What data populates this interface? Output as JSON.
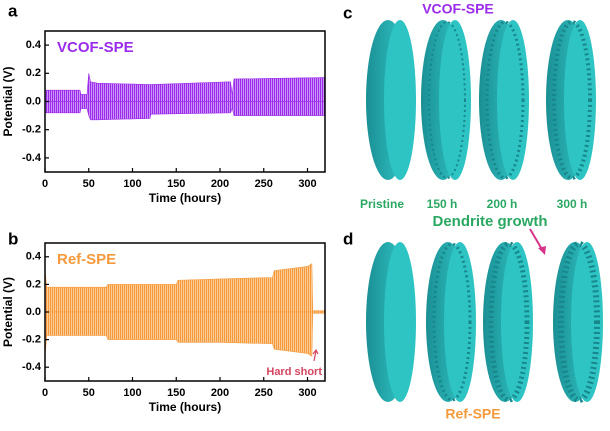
{
  "panels": [
    "a",
    "b",
    "c",
    "d"
  ],
  "chart_data": [
    {
      "type": "area",
      "title": "VCOF-SPE",
      "title_color": "#9a2bea",
      "xlabel": "Time (hours)",
      "ylabel": "Potential (V)",
      "x": [
        0,
        40,
        41,
        48,
        50,
        52,
        60,
        120,
        121,
        212,
        214,
        216,
        320
      ],
      "series": [
        {
          "color": "#9a2bea",
          "values": [
            0.08,
            0.08,
            0.05,
            0.05,
            0.2,
            0.14,
            0.13,
            0.12,
            0.12,
            0.14,
            0.05,
            0.16,
            0.17
          ]
        },
        {
          "color": "#9a2bea",
          "values": [
            -0.08,
            -0.08,
            -0.05,
            -0.05,
            -0.1,
            -0.13,
            -0.13,
            -0.12,
            -0.09,
            -0.08,
            -0.05,
            -0.1,
            -0.1
          ]
        }
      ],
      "xlim": [
        0,
        320
      ],
      "xticks": [
        0,
        50,
        100,
        150,
        200,
        250,
        300
      ],
      "ylim": [
        -0.5,
        0.5
      ],
      "yticks": [
        0.4,
        0.2,
        {
          "value": 0,
          "label": "0.0"
        },
        -0.2,
        -0.4
      ]
    },
    {
      "type": "area",
      "title": "Ref-SPE",
      "title_color": "#f59a3c",
      "xlabel": "Time (hours)",
      "ylabel": "Potential (V)",
      "annotation": "Hard short",
      "x": [
        0,
        2,
        70,
        72,
        150,
        152,
        200,
        260,
        262,
        300,
        305,
        306,
        320
      ],
      "series": [
        {
          "color": "#f59a3c",
          "values": [
            0.3,
            0.18,
            0.18,
            0.2,
            0.2,
            0.23,
            0.24,
            0.25,
            0.3,
            0.33,
            0.35,
            0.01,
            0.01
          ]
        },
        {
          "color": "#f59a3c",
          "values": [
            -0.32,
            -0.17,
            -0.17,
            -0.2,
            -0.2,
            -0.22,
            -0.22,
            -0.23,
            -0.27,
            -0.3,
            -0.32,
            -0.01,
            -0.01
          ]
        }
      ],
      "xlim": [
        0,
        320
      ],
      "xticks": [
        0,
        50,
        100,
        150,
        200,
        250,
        300
      ],
      "ylim": [
        -0.5,
        0.5
      ],
      "yticks": [
        0.4,
        0.2,
        {
          "value": 0,
          "label": "0.0"
        },
        -0.2,
        -0.4
      ]
    }
  ],
  "renderings": {
    "title_top": "VCOF-SPE",
    "time_labels": [
      "Pristine",
      "150 h",
      "200 h",
      "300 h"
    ],
    "annotation": "Dendrite growth",
    "title_bottom": "Ref-SPE"
  }
}
